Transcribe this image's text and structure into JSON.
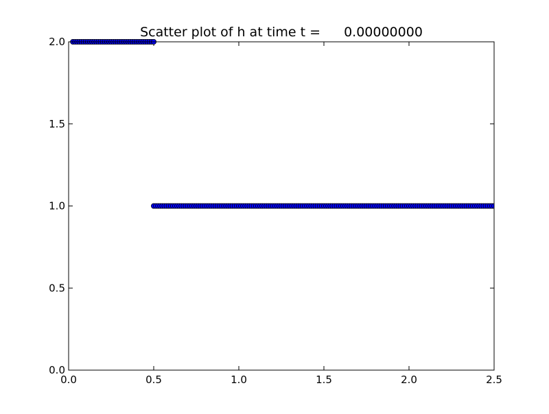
{
  "chart_data": {
    "type": "scatter",
    "title": "Scatter plot of h at time t =",
    "time_value": "0.00000000",
    "xlabel": "",
    "ylabel": "",
    "xlim": [
      0.0,
      2.5
    ],
    "ylim": [
      0.0,
      2.0
    ],
    "x_ticks": [
      "0.0",
      "0.5",
      "1.0",
      "1.5",
      "2.0",
      "2.5"
    ],
    "y_ticks": [
      "0.0",
      "0.5",
      "1.0",
      "1.5",
      "2.0"
    ],
    "grid": false,
    "legend": "none",
    "marker_color": "#0000ff",
    "marker_edge_color": "#000000",
    "series": [
      {
        "x_start": 0.025,
        "x_end": 0.5,
        "x_step": 0.0125,
        "y": 2.0
      },
      {
        "x_start": 0.5,
        "x_end": 2.5,
        "x_step": 0.0125,
        "y": 1.0
      }
    ]
  }
}
